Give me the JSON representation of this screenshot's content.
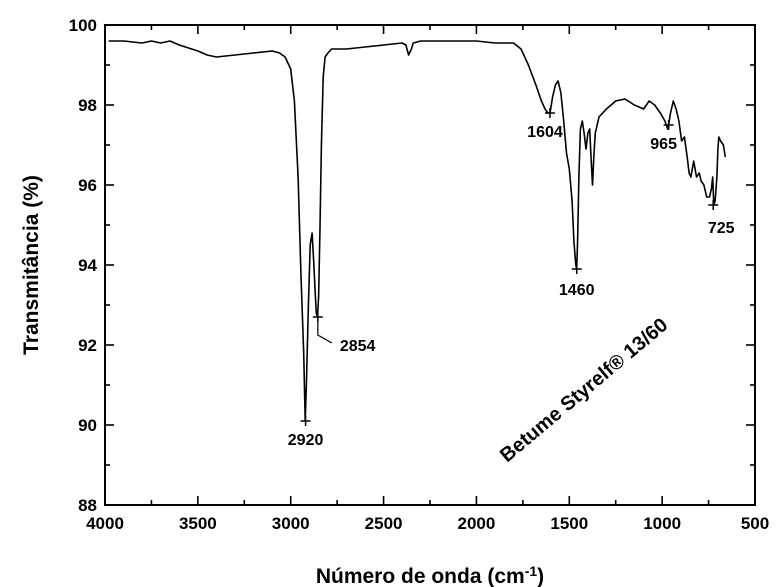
{
  "chart_data": {
    "type": "line",
    "title": "",
    "xlabel": "Número de onda (cm",
    "xlabel_sup": "-1",
    "xlabel_end": ")",
    "ylabel": "Transmitância (%)",
    "xlim": [
      4000,
      500
    ],
    "ylim": [
      88,
      100
    ],
    "x_ticks": [
      "4000",
      "3500",
      "3000",
      "2500",
      "2000",
      "1500",
      "1000",
      "500"
    ],
    "y_ticks": [
      "88",
      "90",
      "92",
      "94",
      "96",
      "98",
      "100"
    ],
    "grid": false,
    "annotation": "Betume Styrelf® 13/60",
    "peaks": [
      {
        "x": 2920,
        "y": 90.1,
        "label": "2920"
      },
      {
        "x": 2854,
        "y": 92.7,
        "label": "2854"
      },
      {
        "x": 1604,
        "y": 97.8,
        "label": "1604"
      },
      {
        "x": 1460,
        "y": 93.9,
        "label": "1460"
      },
      {
        "x": 965,
        "y": 97.5,
        "label": "965"
      },
      {
        "x": 725,
        "y": 95.5,
        "label": "725"
      }
    ],
    "series": [
      {
        "x": [
          3980,
          3900,
          3800,
          3750,
          3700,
          3650,
          3600,
          3500,
          3450,
          3400,
          3300,
          3200,
          3100,
          3060,
          3030,
          3000,
          2980,
          2960,
          2945,
          2930,
          2922,
          2915,
          2905,
          2895,
          2885,
          2875,
          2868,
          2862,
          2856,
          2850,
          2843,
          2835,
          2825,
          2815,
          2800,
          2780,
          2760,
          2700,
          2600,
          2500,
          2400,
          2380,
          2365,
          2350,
          2340,
          2300,
          2200,
          2100,
          2000,
          1900,
          1800,
          1760,
          1720,
          1680,
          1650,
          1630,
          1615,
          1604,
          1590,
          1575,
          1560,
          1545,
          1530,
          1515,
          1500,
          1485,
          1475,
          1465,
          1460,
          1455,
          1448,
          1440,
          1430,
          1420,
          1410,
          1400,
          1390,
          1382,
          1375,
          1368,
          1360,
          1340,
          1300,
          1250,
          1200,
          1150,
          1100,
          1070,
          1040,
          1010,
          985,
          970,
          965,
          955,
          940,
          925,
          910,
          895,
          880,
          865,
          855,
          845,
          830,
          815,
          800,
          790,
          775,
          760,
          745,
          735,
          728,
          722,
          715,
          705,
          700,
          695,
          685,
          670,
          660
        ],
        "y": [
          99.6,
          99.6,
          99.55,
          99.6,
          99.55,
          99.6,
          99.5,
          99.35,
          99.25,
          99.2,
          99.25,
          99.3,
          99.35,
          99.3,
          99.2,
          98.9,
          98.1,
          96.2,
          93.8,
          91.8,
          90.1,
          91.1,
          93.0,
          94.5,
          94.8,
          94.0,
          93.3,
          92.8,
          92.7,
          93.2,
          94.8,
          97.0,
          98.7,
          99.2,
          99.3,
          99.4,
          99.4,
          99.4,
          99.45,
          99.5,
          99.55,
          99.5,
          99.25,
          99.4,
          99.55,
          99.6,
          99.6,
          99.6,
          99.6,
          99.55,
          99.55,
          99.4,
          99.0,
          98.5,
          98.1,
          97.9,
          97.8,
          97.8,
          98.2,
          98.5,
          98.6,
          98.3,
          97.6,
          96.8,
          96.4,
          95.6,
          94.6,
          94.0,
          93.9,
          94.6,
          96.2,
          97.4,
          97.6,
          97.3,
          96.9,
          97.3,
          97.4,
          96.6,
          96.0,
          96.7,
          97.3,
          97.7,
          97.9,
          98.1,
          98.15,
          98.0,
          97.9,
          98.1,
          98.0,
          97.8,
          97.6,
          97.4,
          97.5,
          97.8,
          98.1,
          97.9,
          97.6,
          97.1,
          97.2,
          96.7,
          96.3,
          96.2,
          96.6,
          96.2,
          96.3,
          96.1,
          96.0,
          95.7,
          95.7,
          95.9,
          96.2,
          95.5,
          95.6,
          96.2,
          96.9,
          97.2,
          97.1,
          97.0,
          96.7
        ]
      }
    ]
  }
}
